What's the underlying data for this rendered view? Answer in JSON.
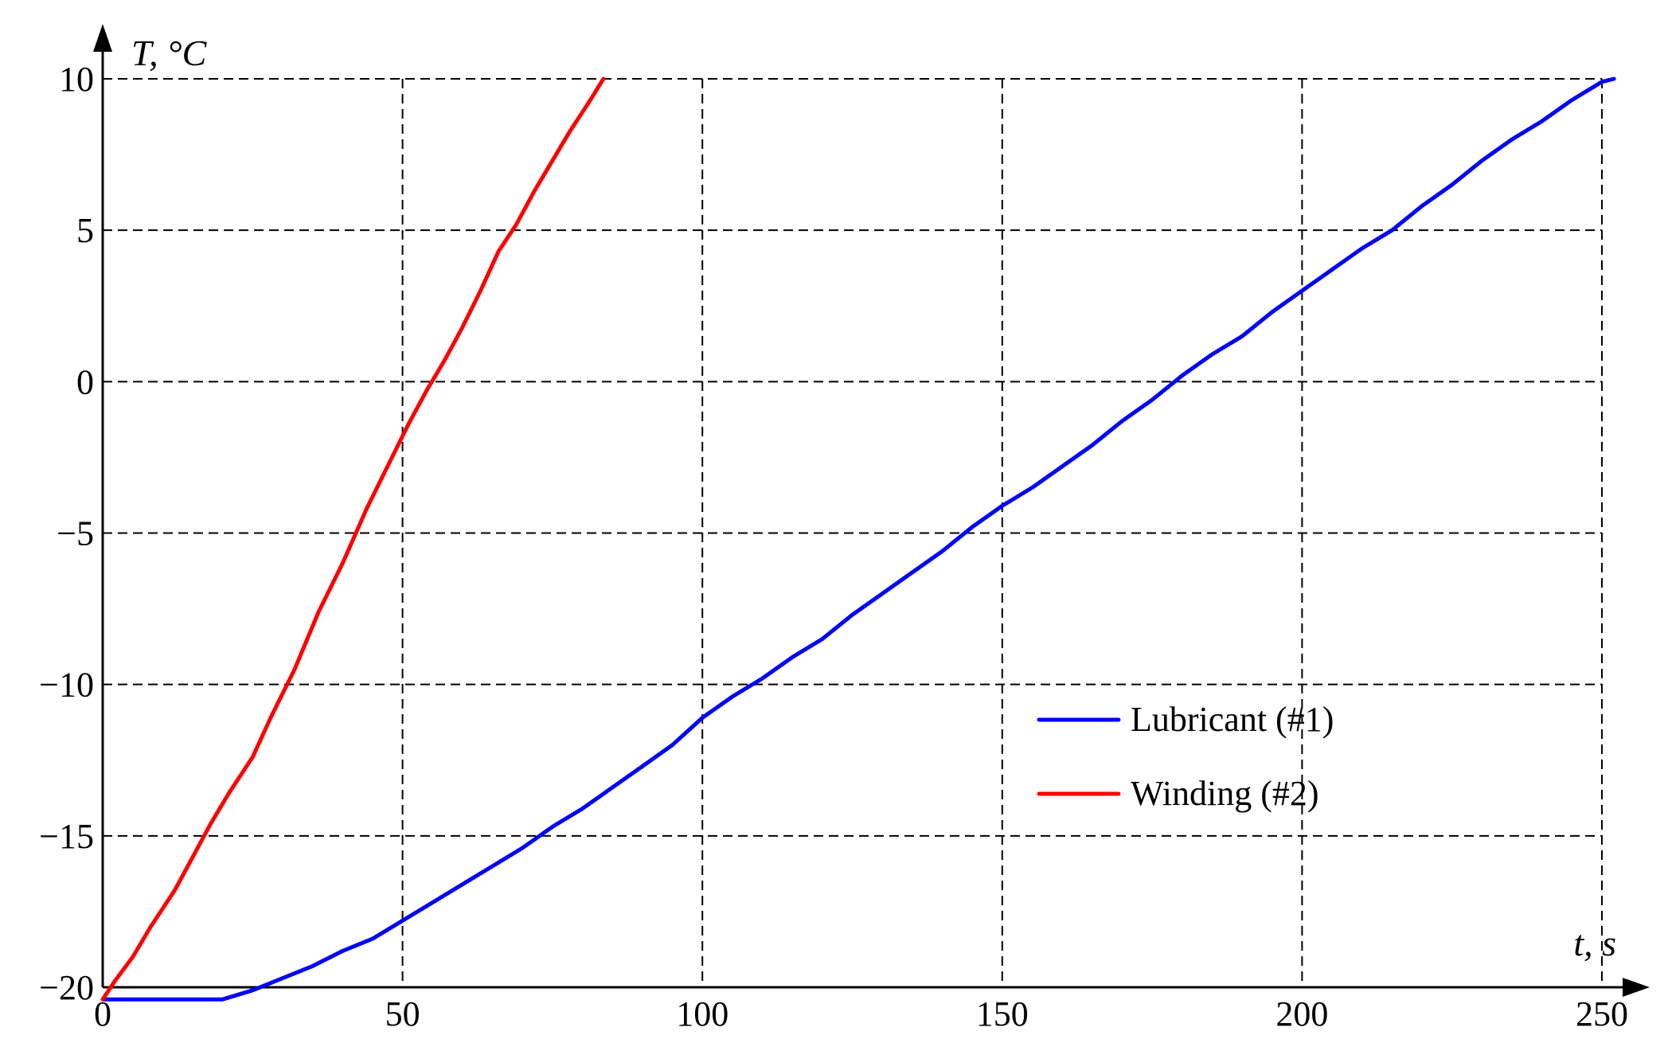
{
  "chart_data": {
    "type": "line",
    "xlabel": "t, s",
    "ylabel": "T, °C",
    "xlim": [
      0,
      255
    ],
    "ylim": [
      -20,
      10
    ],
    "xticks": [
      0,
      50,
      100,
      150,
      200,
      250
    ],
    "yticks": [
      -20,
      -15,
      -10,
      -5,
      0,
      5,
      10
    ],
    "xtick_labels": [
      "0",
      "50",
      "100",
      "150",
      "200",
      "250"
    ],
    "ytick_labels": [
      "−20",
      "−15",
      "−10",
      "−5",
      "0",
      "5",
      "10"
    ],
    "grid": true,
    "legend_position": "right",
    "series": [
      {
        "name": "Lubricant (#1)",
        "color": "#0000ff",
        "x": [
          0,
          10,
          20,
          25,
          30,
          35,
          40,
          45,
          50,
          55,
          60,
          65,
          70,
          75,
          80,
          85,
          90,
          95,
          100,
          105,
          110,
          115,
          120,
          125,
          130,
          135,
          140,
          145,
          150,
          155,
          160,
          165,
          170,
          175,
          180,
          185,
          190,
          195,
          200,
          205,
          210,
          215,
          220,
          225,
          230,
          235,
          240,
          245,
          250,
          252
        ],
        "y": [
          -20.4,
          -20.4,
          -20.4,
          -20.1,
          -19.7,
          -19.3,
          -18.8,
          -18.4,
          -17.8,
          -17.2,
          -16.6,
          -16.0,
          -15.4,
          -14.7,
          -14.1,
          -13.4,
          -12.7,
          -12.0,
          -11.1,
          -10.4,
          -9.8,
          -9.1,
          -8.5,
          -7.7,
          -7.0,
          -6.3,
          -5.6,
          -4.8,
          -4.1,
          -3.5,
          -2.8,
          -2.1,
          -1.3,
          -0.6,
          0.2,
          0.9,
          1.5,
          2.3,
          3.0,
          3.7,
          4.4,
          5.0,
          5.8,
          6.5,
          7.3,
          8.0,
          8.6,
          9.3,
          9.9,
          10.0
        ]
      },
      {
        "name": "Winding (#2)",
        "color": "#ff0000",
        "x": [
          0,
          2,
          5,
          8,
          12,
          15,
          18,
          21,
          25,
          28,
          32,
          36,
          40,
          44,
          48,
          51,
          54,
          57,
          60,
          63,
          66,
          69,
          72,
          75,
          78,
          81,
          83.5
        ],
        "y": [
          -20.4,
          -19.8,
          -19.0,
          -18.0,
          -16.8,
          -15.7,
          -14.6,
          -13.6,
          -12.4,
          -11.1,
          -9.5,
          -7.6,
          -6.0,
          -4.2,
          -2.6,
          -1.4,
          -0.3,
          0.7,
          1.8,
          3.0,
          4.3,
          5.2,
          6.3,
          7.3,
          8.3,
          9.2,
          10.0
        ]
      }
    ]
  }
}
